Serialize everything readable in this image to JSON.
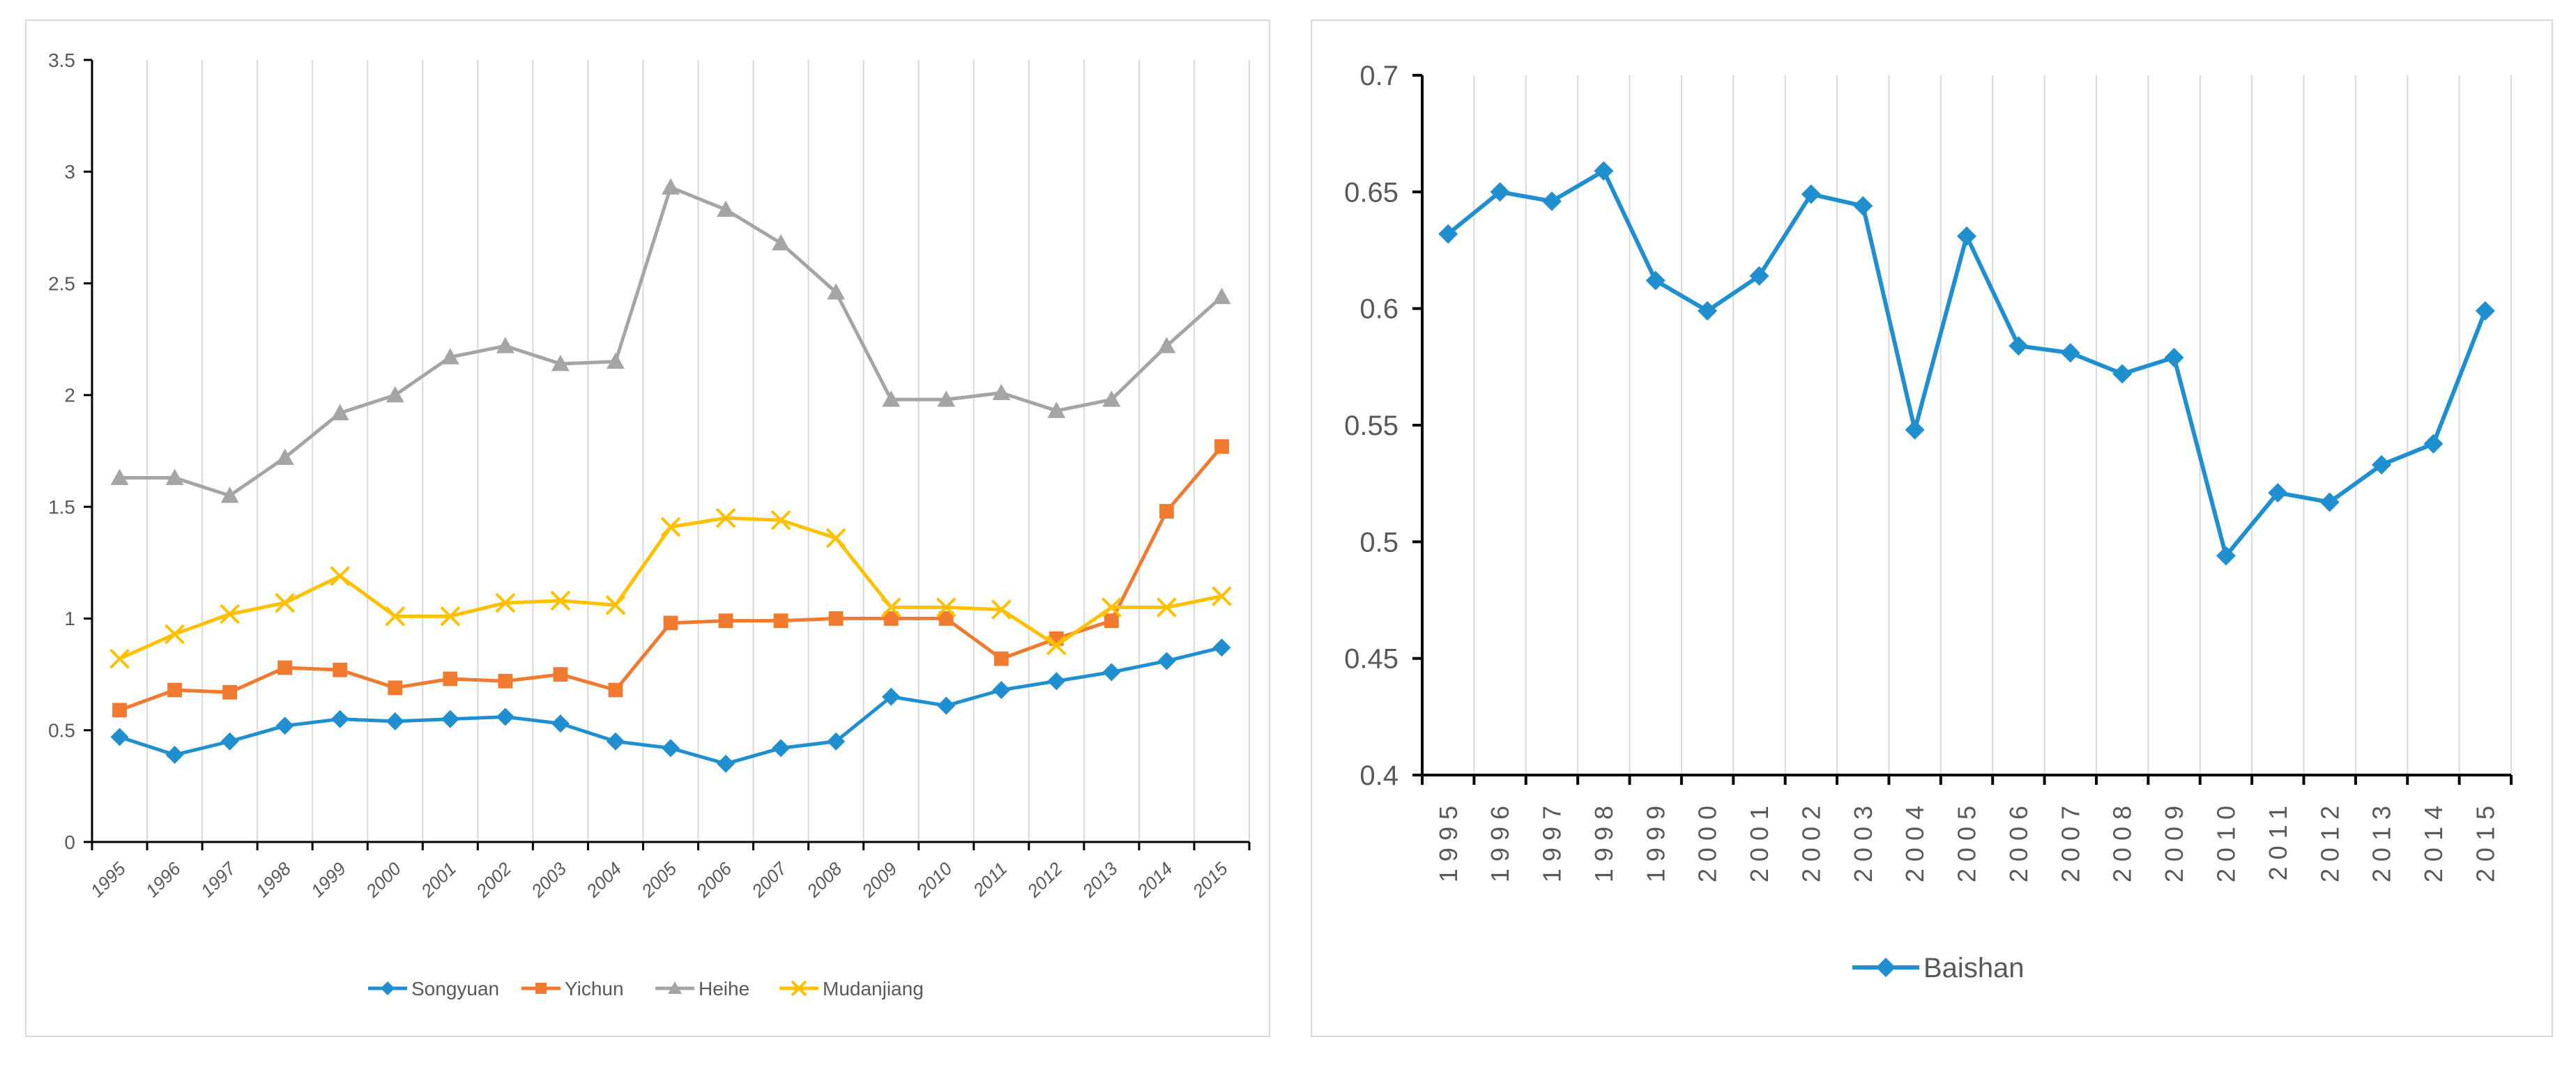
{
  "chart_data": [
    {
      "type": "line",
      "title": "",
      "xlabel": "",
      "ylabel": "",
      "ylim": [
        0,
        3.5
      ],
      "yticks": [
        "0",
        "0.5",
        "1",
        "1.5",
        "2",
        "2.5",
        "3",
        "3.5"
      ],
      "yticks_values": [
        0,
        0.5,
        1,
        1.5,
        2,
        2.5,
        3,
        3.5
      ],
      "categories": [
        "1995",
        "1996",
        "1997",
        "1998",
        "1999",
        "2000",
        "2001",
        "2002",
        "2003",
        "2004",
        "2005",
        "2006",
        "2007",
        "2008",
        "2009",
        "2010",
        "2011",
        "2012",
        "2013",
        "2014",
        "2015"
      ],
      "grid": "vertical",
      "legend_position": "bottom",
      "series": [
        {
          "name": "Songyuan",
          "color": "#1f8fcf",
          "marker": "diamond",
          "values": [
            0.47,
            0.39,
            0.45,
            0.52,
            0.55,
            0.54,
            0.55,
            0.56,
            0.53,
            0.45,
            0.42,
            0.35,
            0.42,
            0.45,
            0.65,
            0.61,
            0.68,
            0.72,
            0.76,
            0.81,
            0.87
          ]
        },
        {
          "name": "Yichun",
          "color": "#f07a30",
          "marker": "square",
          "values": [
            0.59,
            0.68,
            0.67,
            0.78,
            0.77,
            0.69,
            0.73,
            0.72,
            0.75,
            0.68,
            0.98,
            0.99,
            0.99,
            1.0,
            1.0,
            1.0,
            0.82,
            0.91,
            0.99,
            1.48,
            1.77
          ]
        },
        {
          "name": "Heihe",
          "color": "#a5a5a5",
          "marker": "triangle",
          "values": [
            1.63,
            1.63,
            1.55,
            1.72,
            1.92,
            2.0,
            2.17,
            2.22,
            2.14,
            2.15,
            2.93,
            2.83,
            2.68,
            2.46,
            1.98,
            1.98,
            2.01,
            1.93,
            1.98,
            2.22,
            2.44
          ]
        },
        {
          "name": "Mudanjiang",
          "color": "#ffc000",
          "marker": "x",
          "values": [
            0.82,
            0.93,
            1.02,
            1.07,
            1.19,
            1.01,
            1.01,
            1.07,
            1.08,
            1.06,
            1.41,
            1.45,
            1.44,
            1.36,
            1.05,
            1.05,
            1.04,
            0.88,
            1.05,
            1.05,
            1.1
          ]
        }
      ]
    },
    {
      "type": "line",
      "title": "",
      "xlabel": "",
      "ylabel": "",
      "ylim": [
        0.4,
        0.7
      ],
      "yticks": [
        "0.4",
        "0.45",
        "0.5",
        "0.55",
        "0.6",
        "0.65",
        "0.7"
      ],
      "yticks_values": [
        0.4,
        0.45,
        0.5,
        0.55,
        0.6,
        0.65,
        0.7
      ],
      "categories": [
        "1995",
        "1996",
        "1997",
        "1998",
        "1999",
        "2000",
        "2001",
        "2002",
        "2003",
        "2004",
        "2005",
        "2006",
        "2007",
        "2008",
        "2009",
        "2010",
        "2011",
        "2012",
        "2013",
        "2014",
        "2015"
      ],
      "grid": "vertical",
      "legend_position": "bottom",
      "series": [
        {
          "name": "Baishan",
          "color": "#1f8fcf",
          "marker": "diamond",
          "values": [
            0.632,
            0.65,
            0.646,
            0.659,
            0.612,
            0.599,
            0.614,
            0.649,
            0.644,
            0.548,
            0.631,
            0.584,
            0.581,
            0.572,
            0.579,
            0.494,
            0.521,
            0.517,
            0.533,
            0.542,
            0.599
          ]
        }
      ]
    }
  ]
}
